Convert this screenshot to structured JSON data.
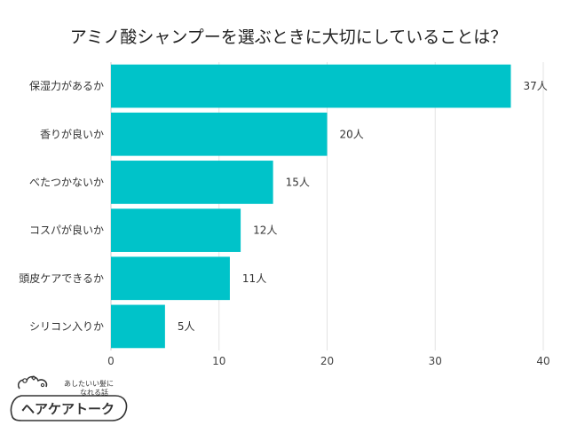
{
  "chart_data": {
    "type": "bar",
    "orientation": "horizontal",
    "title": "アミノ酸シャンプーを選ぶときに大切にしていることは？",
    "categories": [
      "保湿力があるか",
      "香りが良いか",
      "べたつかないか",
      "コスパが良いか",
      "頭皮ケアできるか",
      "シリコン入りか"
    ],
    "values": [
      37,
      20,
      15,
      12,
      11,
      5
    ],
    "value_labels": [
      "37人",
      "20人",
      "15人",
      "12人",
      "11人",
      "5人"
    ],
    "xlim": [
      0,
      40
    ],
    "xticks": [
      "0",
      "10",
      "20",
      "30",
      "40"
    ],
    "bar_color": "#00c3c9",
    "grid": true
  },
  "logo": {
    "subtitle_line1": "あしたいい髪に",
    "subtitle_line2": "なれる話",
    "name": "ヘアケアトーク"
  }
}
